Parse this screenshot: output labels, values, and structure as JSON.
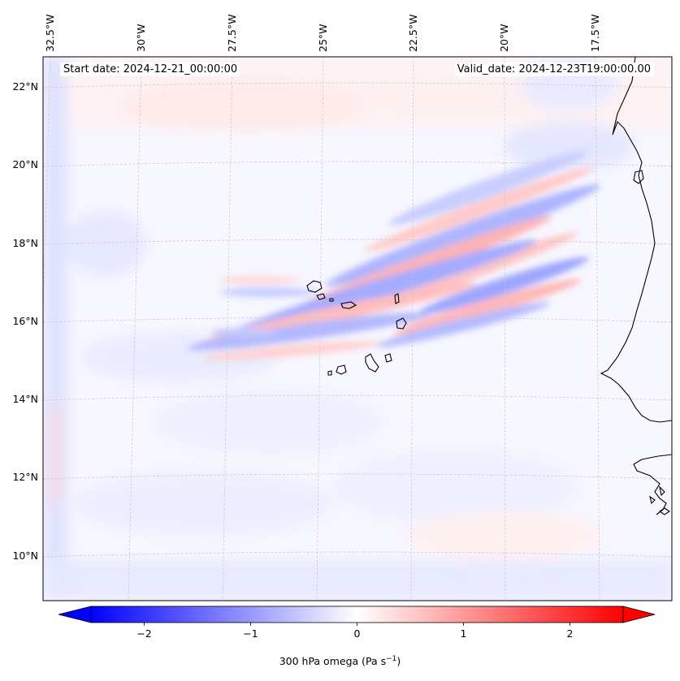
{
  "header": {
    "start_date": "Start date: 2024-12-21_00:00:00",
    "valid_date": "Valid_date: 2024-12-23T19:00:00.00"
  },
  "map": {
    "lon_labels": [
      "32.5°W",
      "30°W",
      "27.5°W",
      "25°W",
      "22.5°W",
      "20°W",
      "17.5°W"
    ],
    "lat_labels": [
      "22°N",
      "20°N",
      "18°N",
      "16°N",
      "14°N",
      "12°N",
      "10°N"
    ],
    "field": "300 hPa omega",
    "cmap": [
      "#0000ff",
      "#ffffff",
      "#ff0000"
    ],
    "gridlines": true
  },
  "colorbar": {
    "ticks": [
      "−2",
      "−1",
      "0",
      "1",
      "2"
    ],
    "tick_values": [
      -2,
      -1,
      0,
      1,
      2
    ],
    "range": [
      -2.5,
      2.5
    ],
    "extend": "both",
    "label_main": "300 hPa omega (Pa s",
    "label_sup": "−1",
    "label_end": ")"
  }
}
